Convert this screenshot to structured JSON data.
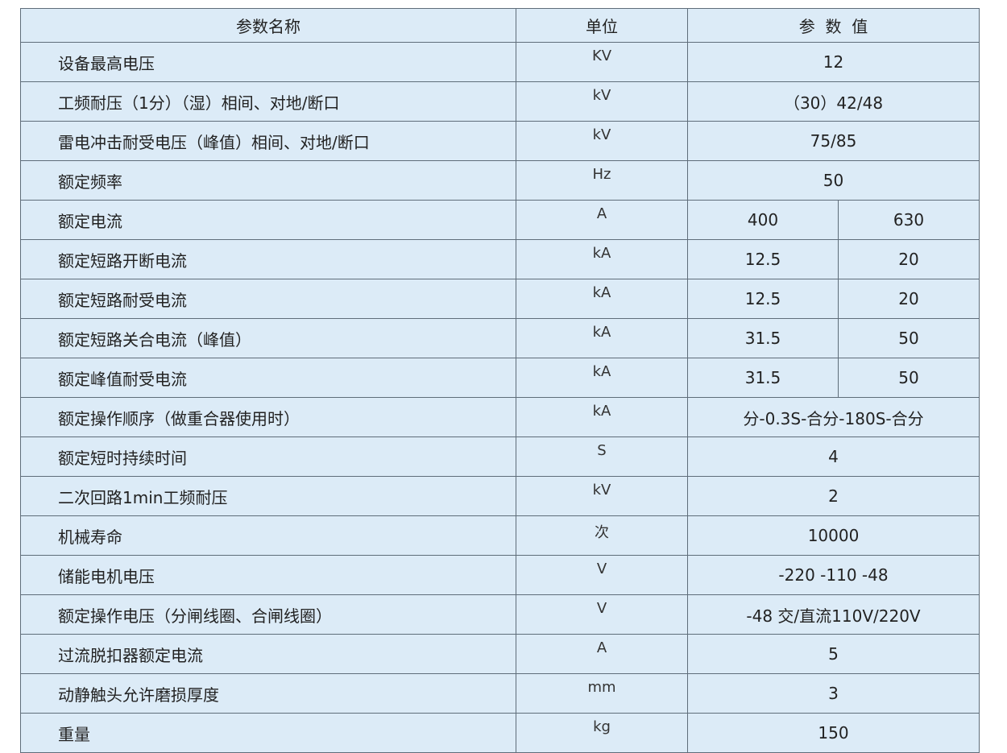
{
  "headers": {
    "name": "参数名称",
    "unit": "单位",
    "value": "参  数  值"
  },
  "rows": [
    {
      "name": "设备最高电压",
      "unit": "KV",
      "value": "12"
    },
    {
      "name": "工频耐压（1分）（湿）相间、对地/断口",
      "unit": "kV",
      "value": "（30）42/48"
    },
    {
      "name": "雷电冲击耐受电压（峰值）相间、对地/断口",
      "unit": "kV",
      "value": "75/85"
    },
    {
      "name": "额定频率",
      "unit": "Hz",
      "value": "50"
    },
    {
      "name": "额定电流",
      "unit": "A",
      "values": [
        "400",
        "630"
      ]
    },
    {
      "name": "额定短路开断电流",
      "unit": "kA",
      "values": [
        "12.5",
        "20"
      ]
    },
    {
      "name": "额定短路耐受电流",
      "unit": "kA",
      "values": [
        "12.5",
        "20"
      ]
    },
    {
      "name": "额定短路关合电流（峰值）",
      "unit": "kA",
      "values": [
        "31.5",
        "50"
      ]
    },
    {
      "name": "额定峰值耐受电流",
      "unit": "kA",
      "values": [
        "31.5",
        "50"
      ]
    },
    {
      "name": "额定操作顺序（做重合器使用时）",
      "unit": "kA",
      "value": "分-0.3S-合分-180S-合分"
    },
    {
      "name": "额定短时持续时间",
      "unit": "S",
      "value": "4"
    },
    {
      "name": "二次回路1min工频耐压",
      "unit": "kV",
      "value": "2"
    },
    {
      "name": "机械寿命",
      "unit": "次",
      "value": "10000"
    },
    {
      "name": "储能电机电压",
      "unit": "V",
      "value": "-220 -110 -48"
    },
    {
      "name": "额定操作电压（分闸线圈、合闸线圈）",
      "unit": "V",
      "value": "-48 交/直流110V/220V"
    },
    {
      "name": "过流脱扣器额定电流",
      "unit": "A",
      "value": "5"
    },
    {
      "name": "动静触头允许磨损厚度",
      "unit": "mm",
      "value": "3"
    },
    {
      "name": "重量",
      "unit": "kg",
      "value": "150"
    }
  ],
  "colors": {
    "cell_background": "#dcebf7",
    "border": "#5f6d7a"
  }
}
